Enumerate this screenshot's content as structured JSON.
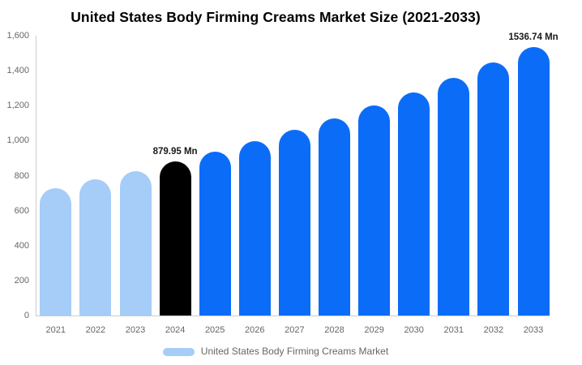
{
  "chart_data": {
    "type": "bar",
    "title": "United States Body Firming Creams Market Size (2021-2033)",
    "legend": "United States Body Firming Creams Market",
    "legend_position": "bottom",
    "unit": "Mn",
    "grid": false,
    "categories": [
      "2021",
      "2022",
      "2023",
      "2024",
      "2025",
      "2026",
      "2027",
      "2028",
      "2029",
      "2030",
      "2031",
      "2032",
      "2033"
    ],
    "series": [
      {
        "name": "United States Body Firming Creams Market",
        "values": [
          730,
          777,
          827,
          879.95,
          936.2,
          996.1,
          1059.8,
          1127.6,
          1199.7,
          1276.4,
          1358.1,
          1445.0,
          1536.74
        ]
      }
    ],
    "bar_roles": [
      "historical",
      "historical",
      "historical",
      "highlight",
      "forecast",
      "forecast",
      "forecast",
      "forecast",
      "forecast",
      "forecast",
      "forecast",
      "forecast",
      "forecast"
    ],
    "annotations": [
      {
        "category": "2024",
        "text": "879.95 Mn"
      },
      {
        "category": "2033",
        "text": "1536.74 Mn"
      }
    ],
    "ylim": [
      0,
      1600
    ],
    "ytick_values": [
      0,
      200,
      400,
      600,
      800,
      1000,
      1200,
      1400,
      1600
    ],
    "ytick_labels": [
      "0",
      "200",
      "400",
      "600",
      "800",
      "1,000",
      "1,200",
      "1,400",
      "1,600"
    ],
    "colors": {
      "historical": "#a5cdf7",
      "highlight": "#000000",
      "forecast": "#0b6cf8",
      "axis_line": "#cccccc",
      "axis_text": "#666666",
      "annotation_text": "#1a1a1a",
      "title_text": "#000000",
      "legend_text": "#666666"
    }
  }
}
